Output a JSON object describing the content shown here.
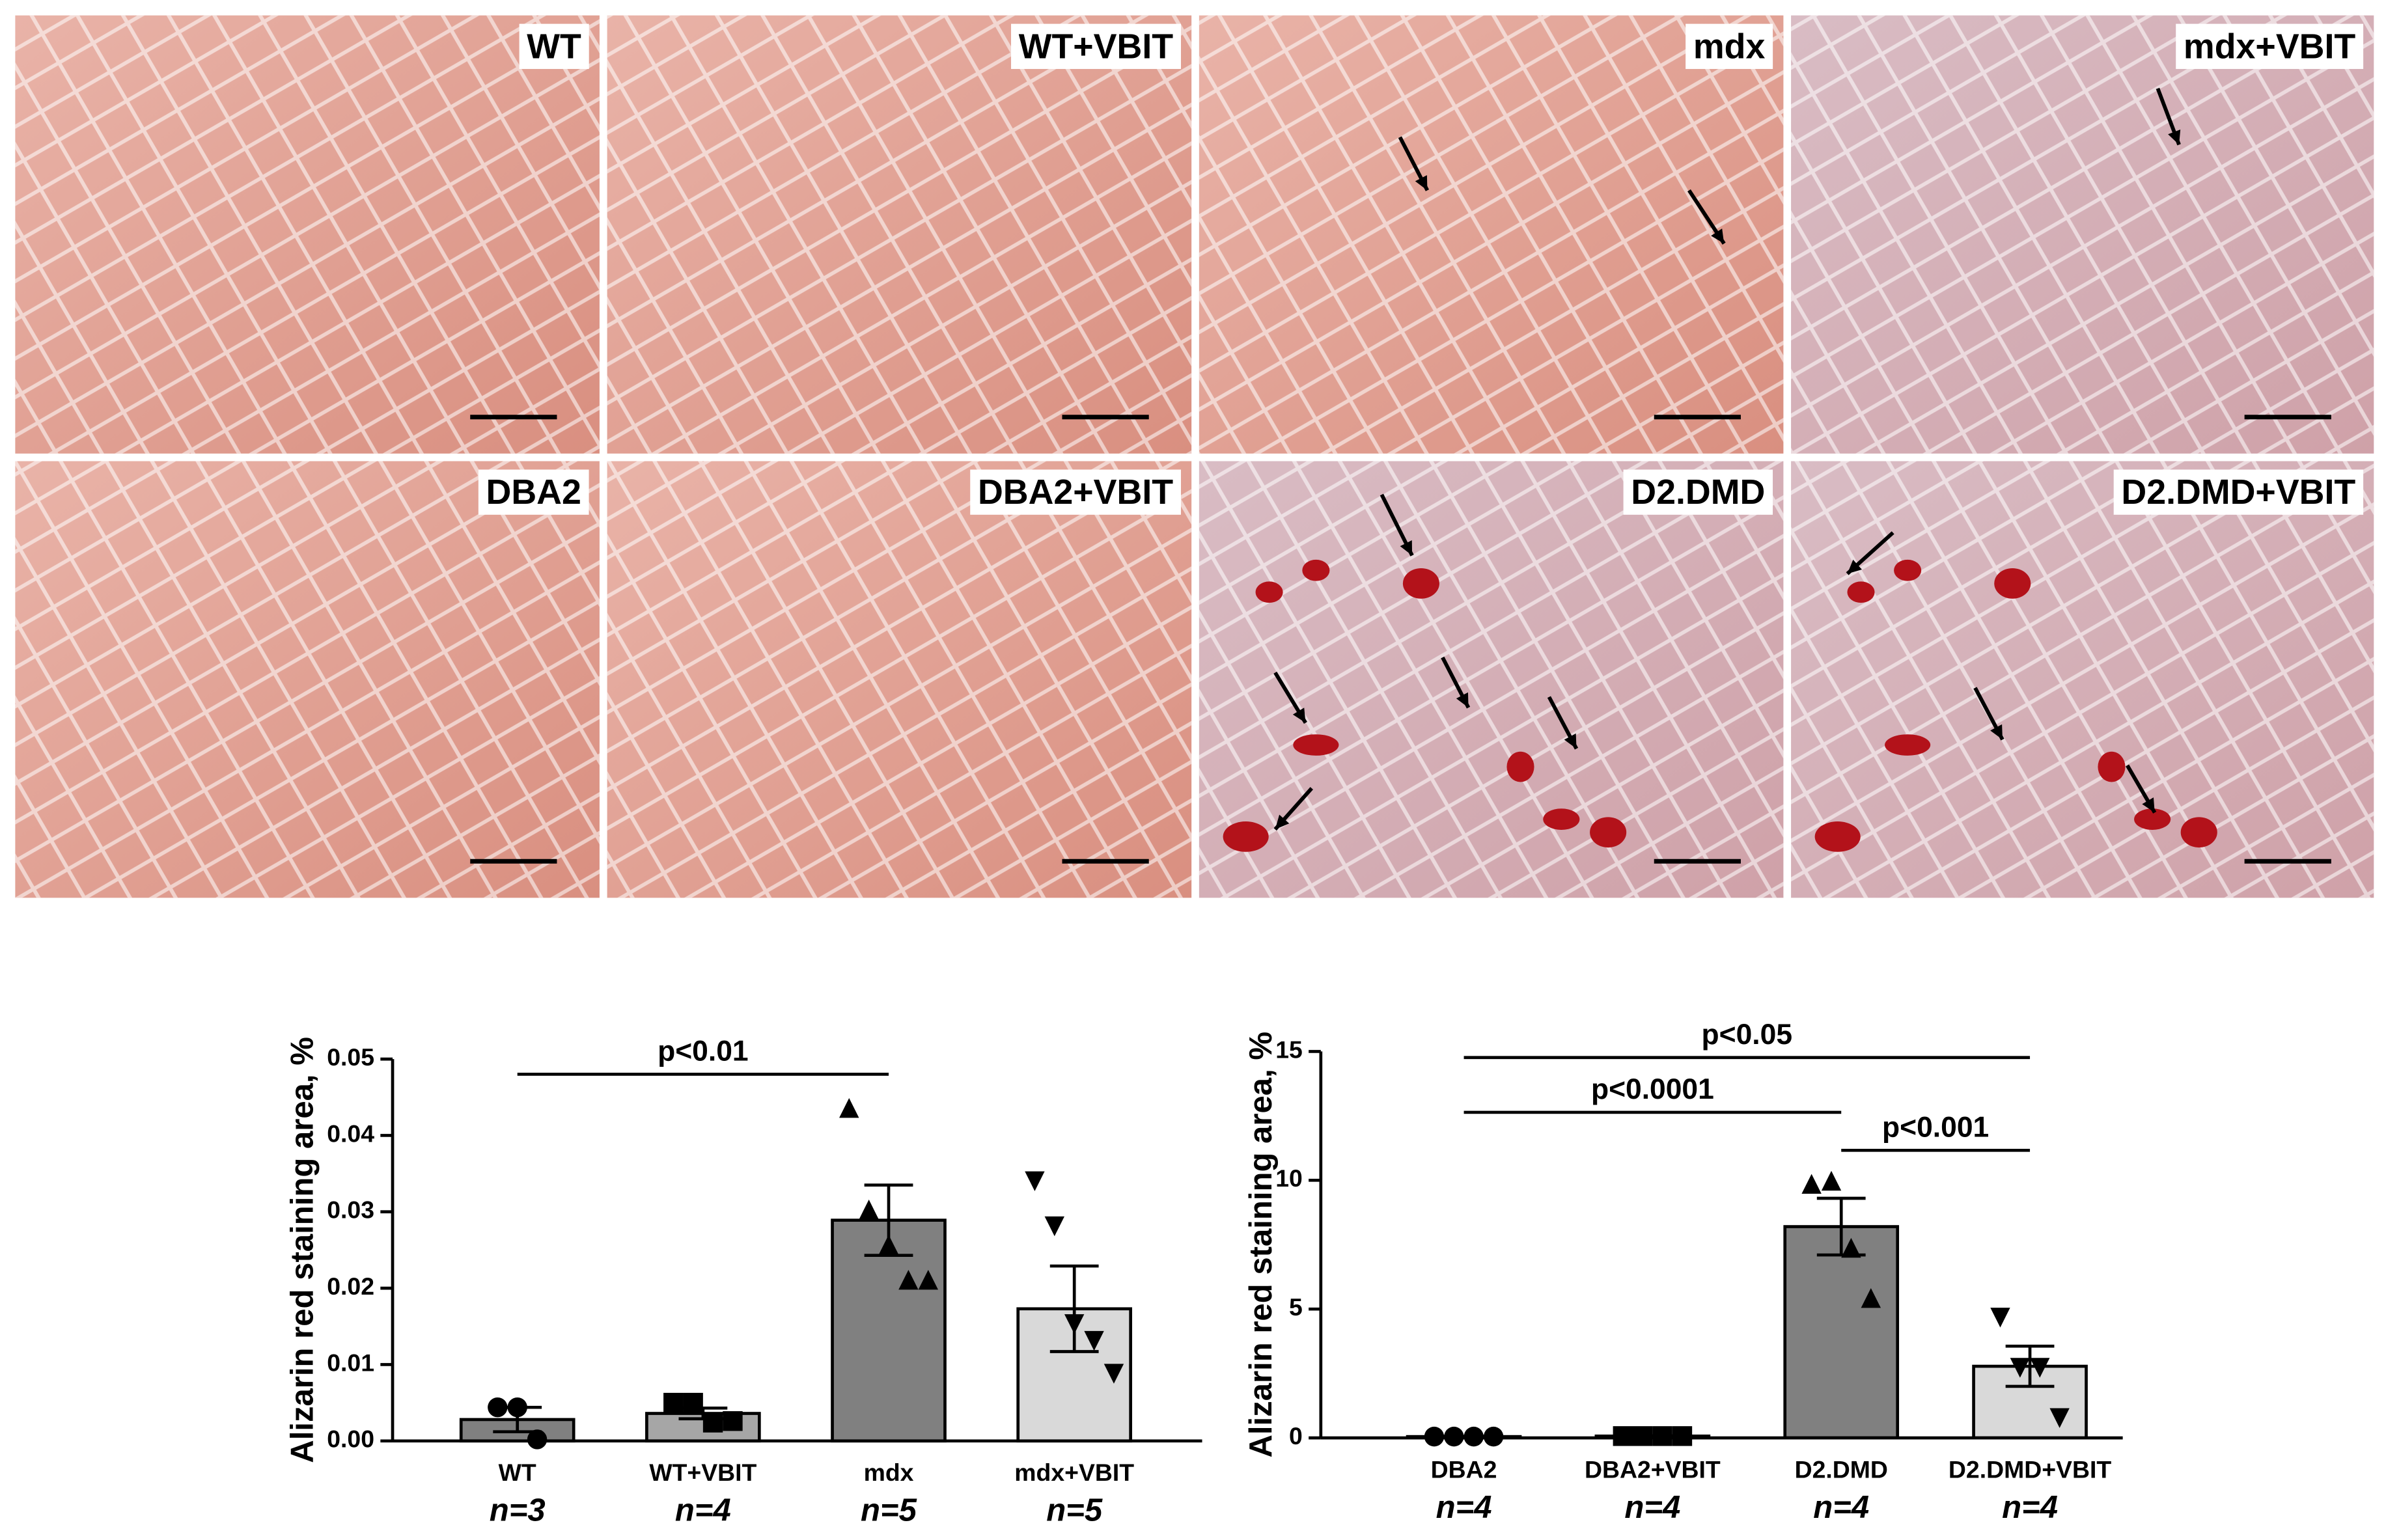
{
  "panels": [
    {
      "label": "WT"
    },
    {
      "label": "WT+VBIT"
    },
    {
      "label": "mdx"
    },
    {
      "label": "mdx+VBIT"
    },
    {
      "label": "DBA2"
    },
    {
      "label": "DBA2+VBIT"
    },
    {
      "label": "D2.DMD"
    },
    {
      "label": "D2.DMD+VBIT"
    }
  ],
  "chart_data": [
    {
      "type": "bar",
      "ylabel": "Alizarin red staining area, %",
      "categories": [
        "WT",
        "WT+VBIT",
        "mdx",
        "mdx+VBIT"
      ],
      "n_labels": [
        "n=3",
        "n=4",
        "n=5",
        "n=5"
      ],
      "values": [
        0.0028,
        0.0036,
        0.0289,
        0.0173
      ],
      "errors": [
        0.0016,
        0.0007,
        0.0046,
        0.0056
      ],
      "points": [
        [
          0.0044,
          0.0044,
          0.0002
        ],
        [
          0.005,
          0.005,
          0.0024,
          0.0026
        ],
        [
          0.0436,
          0.0303,
          0.0257,
          0.0211,
          0.0211
        ],
        [
          0.034,
          0.0281,
          0.0153,
          0.0131,
          0.0088
        ]
      ],
      "colors": [
        "#808080",
        "#a6a6a6",
        "#808080",
        "#d9d9d9"
      ],
      "markers": [
        "circle",
        "square",
        "triangle-up",
        "triangle-down"
      ],
      "ylim": [
        0,
        0.05
      ],
      "yticks": [
        {
          "value": 0,
          "label": "0.00"
        },
        0.01,
        0.02,
        0.03,
        0.04,
        0.05
      ],
      "annotations": [
        {
          "text": "p<0.01",
          "from": 0,
          "to": 2
        }
      ]
    },
    {
      "type": "bar",
      "ylabel": "Alizarin red staining area, %",
      "categories": [
        "DBA2",
        "DBA2+VBIT",
        "D2.DMD",
        "D2.DMD+VBIT"
      ],
      "n_labels": [
        "n=4",
        "n=4",
        "n=4",
        "n=4"
      ],
      "values": [
        0.05,
        0.07,
        8.2,
        2.78
      ],
      "errors": [
        0.01,
        0.01,
        1.1,
        0.78
      ],
      "points": [
        [
          0.05,
          0.05,
          0.05,
          0.05
        ],
        [
          0.07,
          0.07,
          0.07,
          0.07
        ],
        [
          9.86,
          9.98,
          7.38,
          5.43
        ],
        [
          4.67,
          2.72,
          2.72,
          0.77
        ]
      ],
      "colors": [
        "#808080",
        "#a6a6a6",
        "#808080",
        "#d9d9d9"
      ],
      "markers": [
        "circle",
        "square",
        "triangle-up",
        "triangle-down"
      ],
      "ylim": [
        0,
        15
      ],
      "yticks": [
        0,
        5,
        10,
        15
      ],
      "annotations": [
        {
          "text": "p<0.05",
          "from": 0,
          "to": 3
        },
        {
          "text": "p<0.0001",
          "from": 0,
          "to": 2
        },
        {
          "text": "p<0.001",
          "from": 2,
          "to": 3
        }
      ]
    }
  ]
}
